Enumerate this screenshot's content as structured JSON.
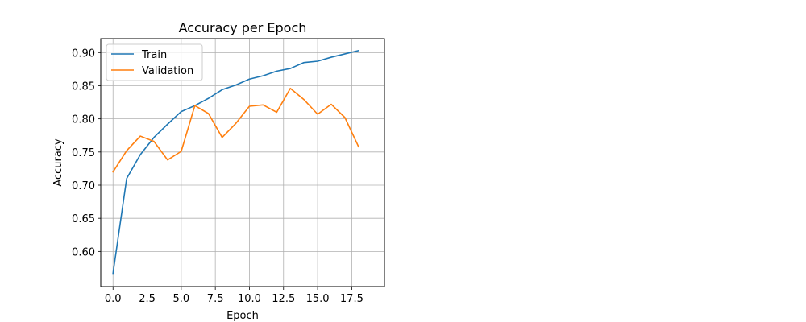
{
  "chart_data": {
    "type": "line",
    "title": "Accuracy per Epoch",
    "xlabel": "Epoch",
    "ylabel": "Accuracy",
    "x": [
      0,
      1,
      2,
      3,
      4,
      5,
      6,
      7,
      8,
      9,
      10,
      11,
      12,
      13,
      14,
      15,
      16,
      17,
      18
    ],
    "xlim": [
      -0.9,
      19.9
    ],
    "ylim": [
      0.547,
      0.921
    ],
    "xticks": [
      0.0,
      2.5,
      5.0,
      7.5,
      10.0,
      12.5,
      15.0,
      17.5
    ],
    "xtick_labels": [
      "0.0",
      "2.5",
      "5.0",
      "7.5",
      "10.0",
      "12.5",
      "15.0",
      "17.5"
    ],
    "yticks": [
      0.6,
      0.65,
      0.7,
      0.75,
      0.8,
      0.85,
      0.9
    ],
    "ytick_labels": [
      "0.60",
      "0.65",
      "0.70",
      "0.75",
      "0.80",
      "0.85",
      "0.90"
    ],
    "grid": true,
    "legend_position": "top-left",
    "series": [
      {
        "name": "Train",
        "color": "#1f77b4",
        "values": [
          0.567,
          0.71,
          0.746,
          0.772,
          0.792,
          0.811,
          0.82,
          0.831,
          0.844,
          0.851,
          0.86,
          0.865,
          0.872,
          0.876,
          0.885,
          0.887,
          0.893,
          0.898,
          0.903
        ]
      },
      {
        "name": "Validation",
        "color": "#ff7f0e",
        "values": [
          0.72,
          0.752,
          0.774,
          0.766,
          0.738,
          0.751,
          0.82,
          0.808,
          0.772,
          0.793,
          0.819,
          0.821,
          0.81,
          0.846,
          0.829,
          0.807,
          0.822,
          0.802,
          0.758
        ]
      }
    ]
  }
}
